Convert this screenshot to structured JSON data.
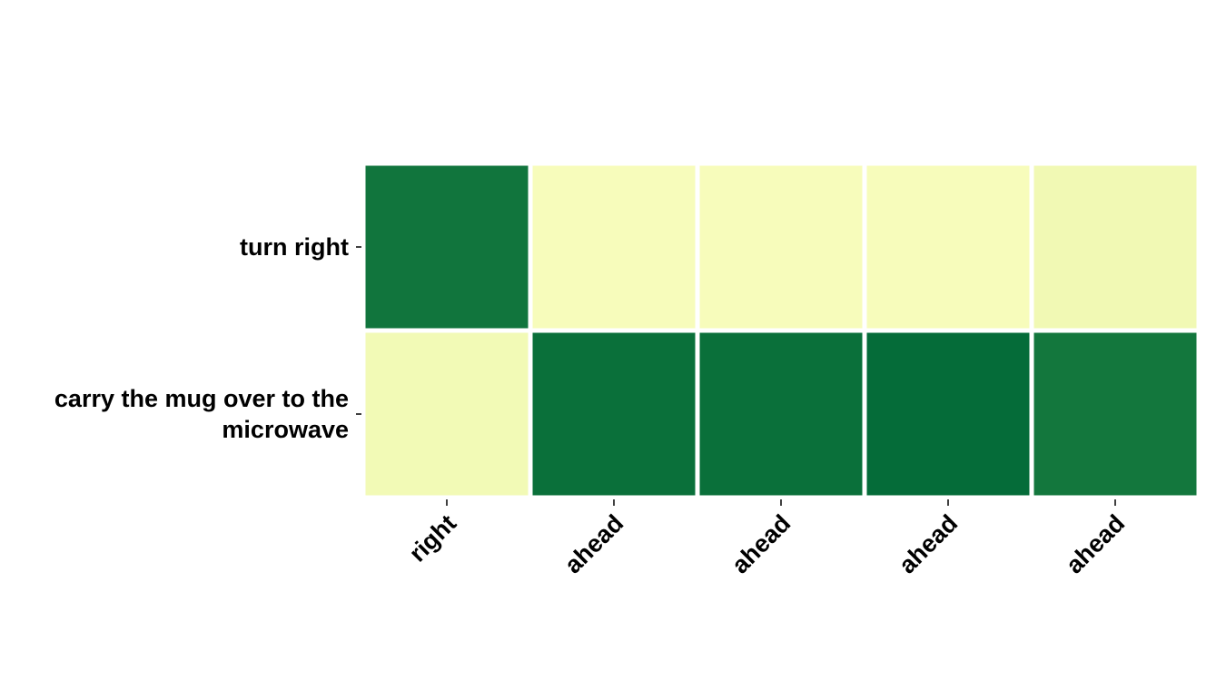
{
  "chart_data": {
    "type": "heatmap",
    "title": "",
    "xlabel": "",
    "ylabel": "",
    "rows": [
      "turn right",
      "carry the mug over to the microwave"
    ],
    "columns": [
      "right",
      "ahead",
      "ahead",
      "ahead",
      "ahead"
    ],
    "values": [
      [
        0.92,
        0.05,
        0.05,
        0.05,
        0.09
      ],
      [
        0.08,
        0.95,
        0.95,
        0.97,
        0.91
      ]
    ],
    "value_range": [
      0,
      1
    ],
    "colormap": "YlGn",
    "colorbar": false
  }
}
